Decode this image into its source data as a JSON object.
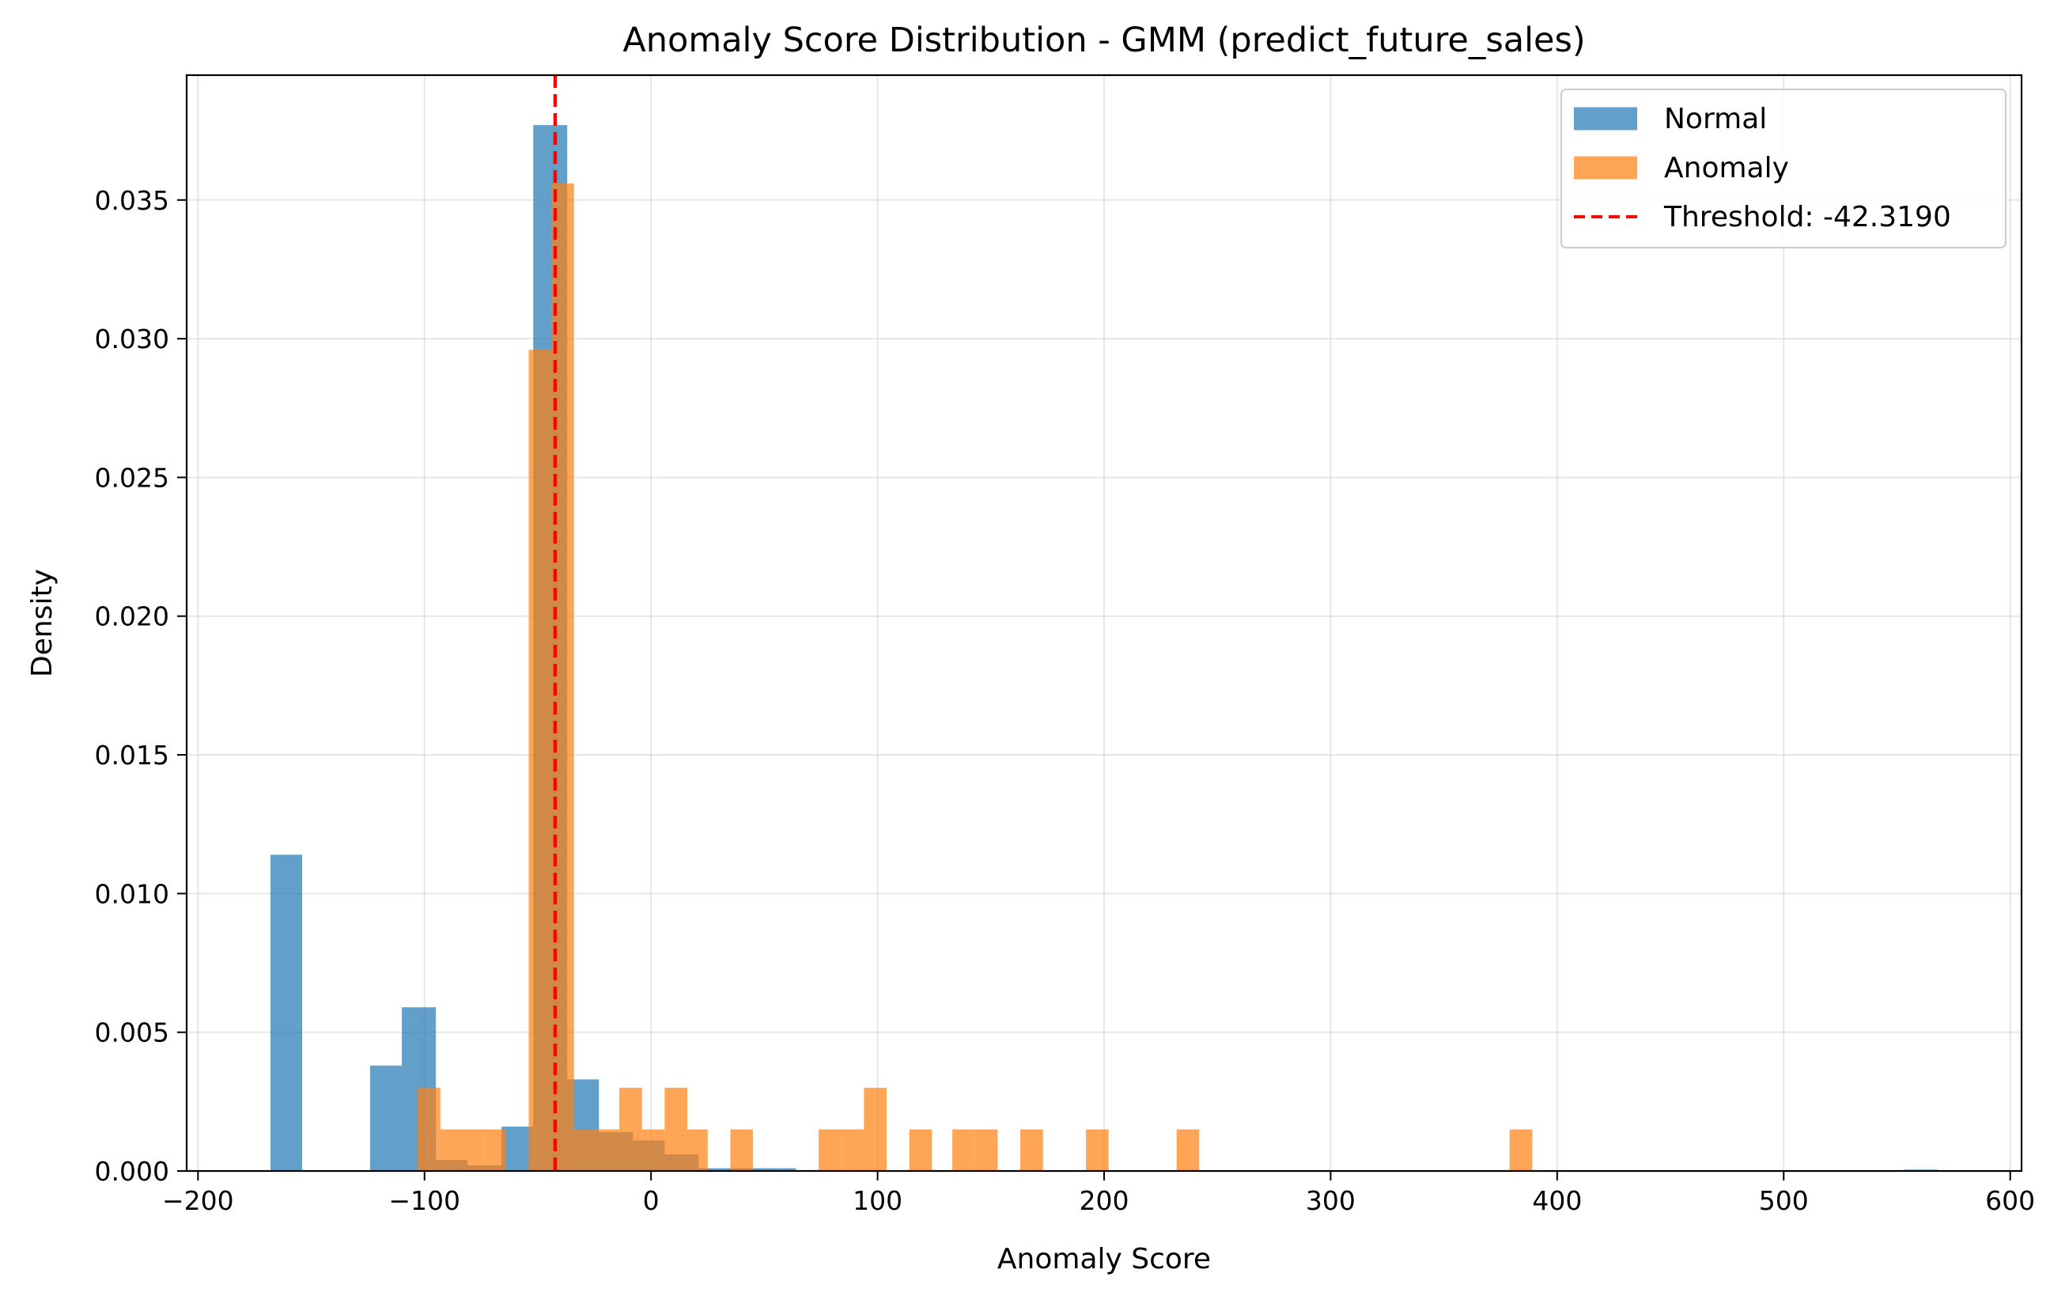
{
  "chart_data": {
    "type": "histogram",
    "title": "Anomaly Score Distribution - GMM (predict_future_sales)",
    "xlabel": "Anomaly Score",
    "ylabel": "Density",
    "xlim": [
      -205,
      605
    ],
    "ylim": [
      0,
      0.0395
    ],
    "xticks": [
      -200,
      -100,
      0,
      100,
      200,
      300,
      400,
      500,
      600
    ],
    "xtick_labels": [
      "−200",
      "−100",
      "0",
      "100",
      "200",
      "300",
      "400",
      "500",
      "600"
    ],
    "yticks": [
      0,
      0.005,
      0.01,
      0.015,
      0.02,
      0.025,
      0.03,
      0.035
    ],
    "ytick_labels": [
      "0.000",
      "0.005",
      "0.010",
      "0.015",
      "0.020",
      "0.025",
      "0.030",
      "0.035"
    ],
    "grid": true,
    "legend_position": "top-right",
    "series": [
      {
        "name": "Normal",
        "color": "#1f77b4",
        "opacity": 0.7,
        "bins": [
          {
            "x0": -168,
            "x1": -154,
            "density": 0.0114
          },
          {
            "x0": -124,
            "x1": -110,
            "density": 0.0038
          },
          {
            "x0": -110,
            "x1": -95,
            "density": 0.0059
          },
          {
            "x0": -95,
            "x1": -81,
            "density": 0.0004
          },
          {
            "x0": -81,
            "x1": -66,
            "density": 0.0002
          },
          {
            "x0": -66,
            "x1": -52,
            "density": 0.0016
          },
          {
            "x0": -52,
            "x1": -37,
            "density": 0.0377
          },
          {
            "x0": -37,
            "x1": -23,
            "density": 0.0033
          },
          {
            "x0": -23,
            "x1": -8,
            "density": 0.0014
          },
          {
            "x0": -8,
            "x1": 6,
            "density": 0.0011
          },
          {
            "x0": 6,
            "x1": 21,
            "density": 0.0006
          },
          {
            "x0": 21,
            "x1": 35,
            "density": 0.0001
          },
          {
            "x0": 35,
            "x1": 50,
            "density": 0.0001
          },
          {
            "x0": 50,
            "x1": 64,
            "density": 0.0001
          },
          {
            "x0": 64,
            "x1": 79,
            "density": 3e-05
          },
          {
            "x0": 553,
            "x1": 568,
            "density": 5e-05
          }
        ]
      },
      {
        "name": "Anomaly",
        "color": "#ff7f0e",
        "opacity": 0.7,
        "bins": [
          {
            "x0": -103,
            "x1": -93,
            "density": 0.003
          },
          {
            "x0": -93,
            "x1": -83,
            "density": 0.0015
          },
          {
            "x0": -83,
            "x1": -74,
            "density": 0.0015
          },
          {
            "x0": -74,
            "x1": -64,
            "density": 0.0015
          },
          {
            "x0": -54,
            "x1": -44,
            "density": 0.0296
          },
          {
            "x0": -44,
            "x1": -34,
            "density": 0.0356
          },
          {
            "x0": -34,
            "x1": -24,
            "density": 0.0015
          },
          {
            "x0": -24,
            "x1": -14,
            "density": 0.0015
          },
          {
            "x0": -14,
            "x1": -4,
            "density": 0.003
          },
          {
            "x0": -4,
            "x1": 6,
            "density": 0.0015
          },
          {
            "x0": 6,
            "x1": 16,
            "density": 0.003
          },
          {
            "x0": 16,
            "x1": 25,
            "density": 0.0015
          },
          {
            "x0": 35,
            "x1": 45,
            "density": 0.0015
          },
          {
            "x0": 74,
            "x1": 84,
            "density": 0.0015
          },
          {
            "x0": 84,
            "x1": 94,
            "density": 0.0015
          },
          {
            "x0": 94,
            "x1": 104,
            "density": 0.003
          },
          {
            "x0": 114,
            "x1": 124,
            "density": 0.0015
          },
          {
            "x0": 133,
            "x1": 143,
            "density": 0.0015
          },
          {
            "x0": 143,
            "x1": 153,
            "density": 0.0015
          },
          {
            "x0": 163,
            "x1": 173,
            "density": 0.0015
          },
          {
            "x0": 192,
            "x1": 202,
            "density": 0.0015
          },
          {
            "x0": 232,
            "x1": 242,
            "density": 0.0015
          },
          {
            "x0": 379,
            "x1": 389,
            "density": 0.0015
          }
        ]
      }
    ],
    "threshold": {
      "label": "Threshold: -42.3190",
      "value": -42.319,
      "color": "#ff0000",
      "style": "dashed"
    }
  }
}
